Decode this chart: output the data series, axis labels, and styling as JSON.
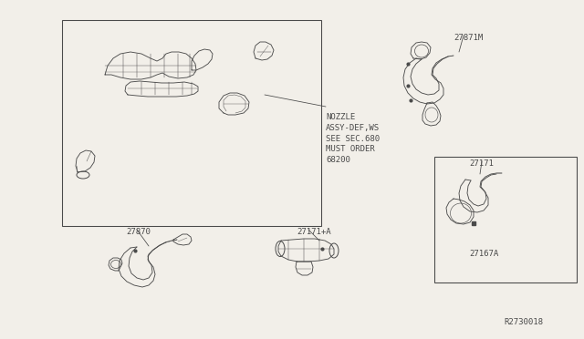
{
  "bg_color": "#f2efe9",
  "line_color": "#4a4a4a",
  "diagram_ref": "R2730018",
  "labels": {
    "nozzle_label": "NOZZLE\nASSY-DEF,WS\nSEE SEC.680\nMUST ORDER\n68200",
    "part_27870": "27870",
    "part_27171A": "27171+A",
    "part_27871M": "27871M",
    "part_27171": "27171",
    "part_27167A": "27167A"
  },
  "font_size": 6.5,
  "lw": 0.7,
  "fig_w": 6.4,
  "fig_h": 3.72,
  "dpi": 100
}
